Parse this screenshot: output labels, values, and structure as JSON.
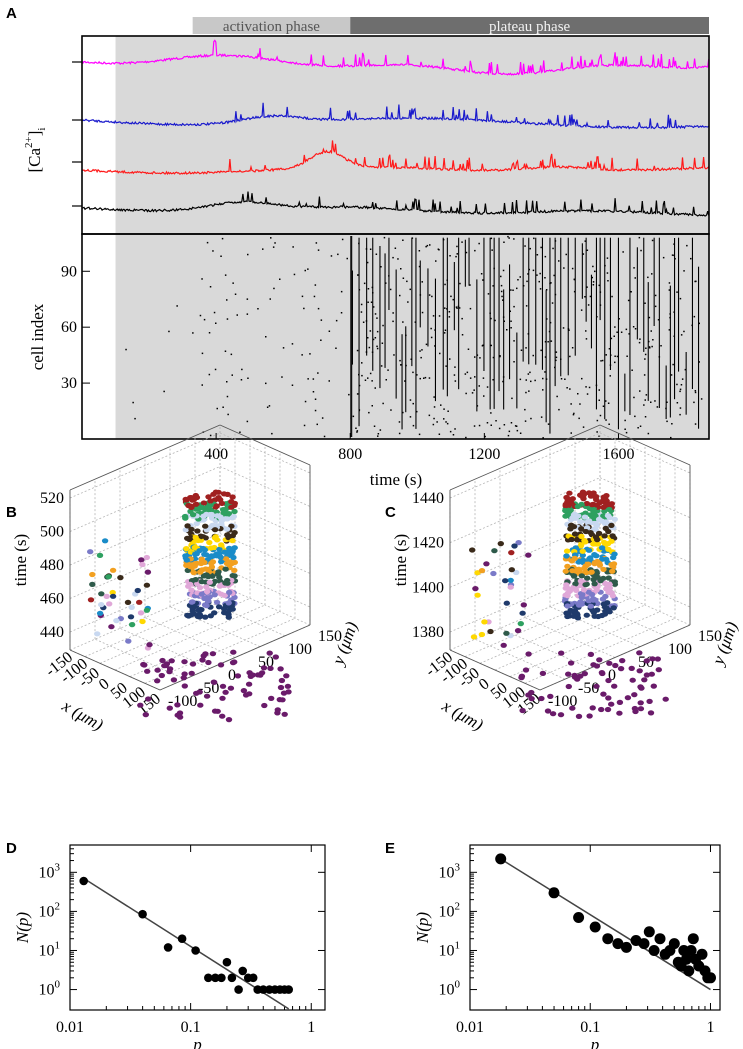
{
  "panel_labels": {
    "A": "A",
    "B": "B",
    "C": "C",
    "D": "D",
    "E": "E"
  },
  "chart_data": [
    {
      "panel": "A",
      "type": "line",
      "title": "",
      "phase_bars": [
        {
          "label": "activation phase",
          "start": 330,
          "end": 800,
          "color": "#c8c8c8"
        },
        {
          "label": "plateau phase",
          "start": 800,
          "end": 1870,
          "color": "#6e6e6e"
        }
      ],
      "shaded_region": {
        "start": 100,
        "end": 1870,
        "color": "#d9d9d9"
      },
      "x_range": [
        0,
        1870
      ],
      "ylabel_top": "[Ca",
      "ylabel_sup": "2+",
      "ylabel_suffix": "]",
      "ylabel_sub": "i",
      "series": [
        {
          "name": "cell-magenta",
          "color": "#ff00ff"
        },
        {
          "name": "cell-blue",
          "color": "#1a1acc"
        },
        {
          "name": "cell-red",
          "color": "#ff1a1a"
        },
        {
          "name": "cell-black",
          "color": "#000000"
        }
      ],
      "raster": {
        "ylabel": "cell index",
        "y_range": [
          0,
          110
        ],
        "yticks": [
          30,
          60,
          90
        ],
        "n_cells": 110
      },
      "xlabel": "time (s)",
      "xticks": [
        400,
        800,
        1200,
        1600
      ]
    },
    {
      "panel": "B",
      "type": "scatter",
      "dims": "3d",
      "zlabel": "time (s)",
      "zticks": [
        440,
        460,
        480,
        500,
        520
      ],
      "xlabel": "x (μm)",
      "xticks": [
        -150,
        -100,
        -50,
        0,
        50,
        100,
        150
      ],
      "ylabel": "y (μm)",
      "yticks": [
        150,
        100,
        50,
        0,
        -50,
        -100
      ]
    },
    {
      "panel": "C",
      "type": "scatter",
      "dims": "3d",
      "zlabel": "time (s)",
      "zticks": [
        1380,
        1400,
        1420,
        1440
      ],
      "xlabel": "x (μm)",
      "xticks": [
        -150,
        -100,
        -50,
        0,
        50,
        100,
        150
      ],
      "ylabel": "y (μm)",
      "yticks": [
        150,
        100,
        50,
        0,
        -50,
        -100
      ]
    },
    {
      "panel": "D",
      "type": "scatter",
      "scale": "log-log",
      "xlabel": "p",
      "ylabel": "N(p)",
      "xlim": [
        0.01,
        1.3
      ],
      "ylim": [
        0.3,
        5000
      ],
      "xtick_labels": [
        "0.01",
        "0.1",
        "1"
      ],
      "ytick_labels": [
        "10",
        "10",
        "10",
        "10"
      ],
      "ytick_exps": [
        "0",
        "1",
        "2",
        "3"
      ],
      "x": [
        0.013,
        0.04,
        0.065,
        0.085,
        0.11,
        0.14,
        0.16,
        0.18,
        0.2,
        0.22,
        0.25,
        0.27,
        0.3,
        0.33,
        0.36,
        0.4,
        0.45,
        0.5,
        0.55,
        0.6,
        0.65
      ],
      "y": [
        600,
        85,
        12,
        20,
        10,
        2,
        2,
        2,
        5,
        2,
        1,
        3,
        2,
        2,
        1,
        1,
        1,
        1,
        1,
        1,
        1
      ],
      "fit": {
        "x": [
          0.013,
          0.65
        ],
        "y": [
          700,
          0.32
        ]
      }
    },
    {
      "panel": "E",
      "type": "scatter",
      "scale": "log-log",
      "xlabel": "p",
      "ylabel": "N(p)",
      "xlim": [
        0.01,
        1.2
      ],
      "ylim": [
        0.3,
        5000
      ],
      "xtick_labels": [
        "0.01",
        "0.1",
        "1"
      ],
      "ytick_labels": [
        "10",
        "10",
        "10",
        "10"
      ],
      "ytick_exps": [
        "0",
        "1",
        "2",
        "3"
      ],
      "x": [
        0.018,
        0.05,
        0.08,
        0.11,
        0.14,
        0.17,
        0.2,
        0.24,
        0.28,
        0.31,
        0.34,
        0.38,
        0.42,
        0.46,
        0.5,
        0.54,
        0.57,
        0.6,
        0.63,
        0.66,
        0.69,
        0.72,
        0.75,
        0.8,
        0.85,
        0.9,
        0.95,
        1.0
      ],
      "y": [
        2200,
        300,
        70,
        40,
        20,
        15,
        12,
        18,
        15,
        30,
        10,
        20,
        8,
        10,
        15,
        5,
        4,
        10,
        6,
        3,
        10,
        20,
        6,
        4,
        8,
        3,
        2,
        2
      ],
      "fit": {
        "x": [
          0.018,
          1.0
        ],
        "y": [
          2200,
          1.0
        ]
      }
    }
  ]
}
